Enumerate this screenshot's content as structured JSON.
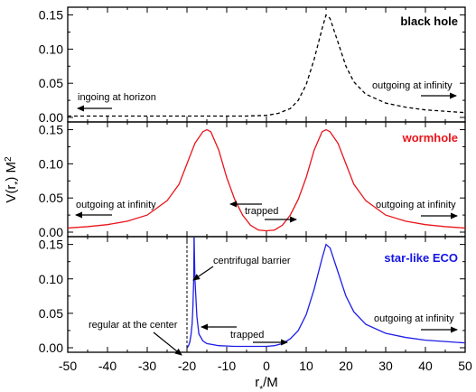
{
  "chart_data": [
    {
      "type": "line",
      "panel_label": "black hole",
      "panel_label_color": "#000000",
      "xlabel": "r*/M",
      "ylabel": "V(r*) M²",
      "xlim": [
        -50,
        50
      ],
      "ylim": [
        0,
        0.16
      ],
      "x_ticks": [
        "-50",
        "-40",
        "-30",
        "-20",
        "-10",
        "0",
        "10",
        "20",
        "30",
        "40",
        "50"
      ],
      "y_ticks": [
        "0.00",
        "0.05",
        "0.10",
        "0.15"
      ],
      "series": [
        {
          "style": "dashed",
          "color": "#000000",
          "x": [
            -50,
            -20,
            -10,
            -5,
            0,
            3,
            6,
            8,
            10,
            12,
            14,
            15,
            16,
            18,
            20,
            22,
            25,
            30,
            35,
            40,
            45,
            50
          ],
          "y": [
            0.002,
            0.002,
            0.002,
            0.002,
            0.003,
            0.006,
            0.013,
            0.025,
            0.048,
            0.085,
            0.13,
            0.15,
            0.145,
            0.11,
            0.075,
            0.052,
            0.034,
            0.021,
            0.015,
            0.011,
            0.009,
            0.007
          ]
        }
      ],
      "annotations": [
        {
          "text": "ingoing at horizon",
          "arrow": "left"
        },
        {
          "text": "outgoing at infinity",
          "arrow": "right"
        }
      ]
    },
    {
      "type": "line",
      "panel_label": "wormhole",
      "panel_label_color": "#e8141b",
      "xlim": [
        -50,
        50
      ],
      "ylim": [
        0,
        0.16
      ],
      "y_ticks": [
        "0.00",
        "0.05",
        "0.10",
        "0.15"
      ],
      "series": [
        {
          "style": "solid",
          "color": "#e8141b",
          "x": [
            -50,
            -45,
            -40,
            -35,
            -30,
            -25,
            -22,
            -20,
            -18,
            -16,
            -15,
            -14,
            -12,
            -10,
            -8,
            -6,
            -4,
            -2,
            0,
            2,
            4,
            6,
            8,
            10,
            12,
            14,
            15,
            16,
            18,
            20,
            22,
            25,
            30,
            35,
            40,
            45,
            50
          ],
          "y": [
            0.006,
            0.008,
            0.011,
            0.016,
            0.025,
            0.046,
            0.07,
            0.1,
            0.13,
            0.147,
            0.15,
            0.147,
            0.12,
            0.08,
            0.048,
            0.025,
            0.01,
            0.003,
            0.002,
            0.003,
            0.01,
            0.025,
            0.048,
            0.08,
            0.12,
            0.147,
            0.15,
            0.147,
            0.13,
            0.1,
            0.07,
            0.046,
            0.025,
            0.016,
            0.011,
            0.008,
            0.006
          ]
        }
      ],
      "annotations": [
        {
          "text": "outgoing at infinity",
          "arrow": "left"
        },
        {
          "text": "trapped",
          "arrow": "both"
        },
        {
          "text": "outgoing at infinity",
          "arrow": "right"
        }
      ]
    },
    {
      "type": "line",
      "panel_label": "star-like ECO",
      "panel_label_color": "#1414e6",
      "xlim": [
        -50,
        50
      ],
      "ylim": [
        0,
        0.16
      ],
      "y_ticks": [
        "0.00",
        "0.05",
        "0.10",
        "0.15"
      ],
      "series": [
        {
          "style": "solid",
          "color": "#1e1ee6",
          "x": [
            -18.2,
            -18.3,
            -18.5,
            -18.7,
            -19,
            -19.3,
            -19.6,
            -19.8,
            -20
          ],
          "y": [
            0.16,
            0.1,
            0.06,
            0.035,
            0.018,
            0.008,
            0.003,
            0.001,
            0.0
          ]
        },
        {
          "style": "solid",
          "color": "#1e1ee6",
          "x": [
            -18.2,
            -18,
            -17.5,
            -17,
            -16,
            -15,
            -12,
            -8,
            -4,
            0,
            2,
            4,
            6,
            8,
            10,
            12,
            14,
            15,
            16,
            18,
            20,
            22,
            25,
            30,
            35,
            40,
            45,
            50
          ],
          "y": [
            0.16,
            0.1,
            0.045,
            0.02,
            0.01,
            0.006,
            0.003,
            0.002,
            0.002,
            0.002,
            0.003,
            0.006,
            0.013,
            0.025,
            0.048,
            0.085,
            0.13,
            0.15,
            0.145,
            0.11,
            0.075,
            0.052,
            0.034,
            0.021,
            0.015,
            0.011,
            0.009,
            0.007
          ]
        }
      ],
      "vline": {
        "x": -20,
        "style": "dashed",
        "color": "#000000"
      },
      "annotations": [
        {
          "text": "centrifugal barrier",
          "arrow": "down-left"
        },
        {
          "text": "regular at the center",
          "arrow": "down-right"
        },
        {
          "text": "trapped",
          "arrow": "both"
        },
        {
          "text": "outgoing at infinity",
          "arrow": "right"
        }
      ]
    }
  ]
}
